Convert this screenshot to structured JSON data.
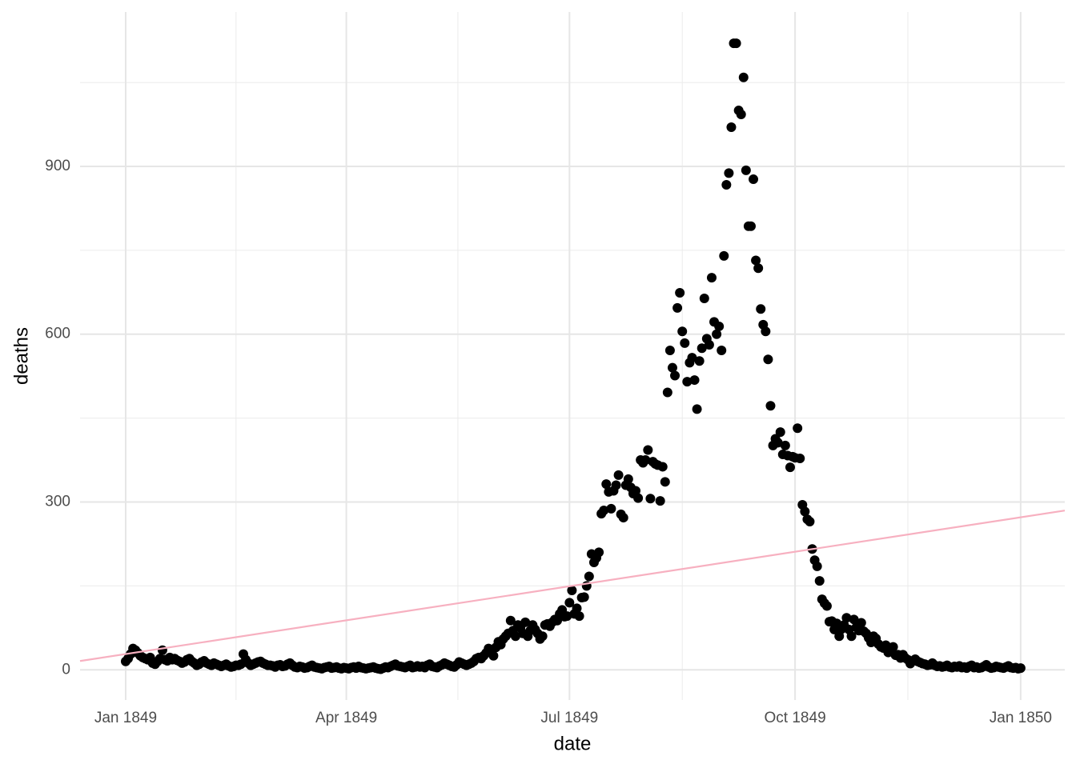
{
  "chart_data": {
    "type": "scatter",
    "x_label": "date",
    "y_label": "deaths",
    "xlim": [
      -18.6,
      383.0
    ],
    "ylim": [
      -54,
      1176
    ],
    "xticks": [
      {
        "value": 0,
        "label": "Jan 1849"
      },
      {
        "value": 90,
        "label": "Apr 1849"
      },
      {
        "value": 181,
        "label": "Jul 1849"
      },
      {
        "value": 273,
        "label": "Oct 1849"
      },
      {
        "value": 365,
        "label": "Jan 1850"
      }
    ],
    "yticks": [
      0,
      300,
      600,
      900
    ],
    "x_minor_grid": [
      45,
      135.5,
      227,
      319
    ],
    "y_minor_grid": [
      150,
      450,
      750,
      1050
    ],
    "grid": true,
    "color": "#000000",
    "x": [
      0,
      1,
      2,
      3,
      4,
      5,
      6,
      7,
      8,
      9,
      10,
      11,
      12,
      13,
      14,
      15,
      16,
      17,
      18,
      19,
      20,
      21,
      22,
      23,
      24,
      25,
      26,
      27,
      28,
      29,
      30,
      31,
      32,
      33,
      34,
      35,
      36,
      37,
      38,
      39,
      40,
      41,
      42,
      43,
      44,
      45,
      46,
      47,
      48,
      49,
      50,
      51,
      52,
      53,
      54,
      55,
      56,
      57,
      58,
      59,
      60,
      61,
      62,
      63,
      64,
      65,
      66,
      67,
      68,
      69,
      70,
      71,
      72,
      73,
      74,
      75,
      76,
      77,
      78,
      79,
      80,
      81,
      82,
      83,
      84,
      85,
      86,
      87,
      88,
      89,
      90,
      91,
      92,
      93,
      94,
      95,
      96,
      97,
      98,
      99,
      100,
      101,
      102,
      103,
      104,
      105,
      106,
      107,
      108,
      109,
      110,
      111,
      112,
      113,
      114,
      115,
      116,
      117,
      118,
      119,
      120,
      121,
      122,
      123,
      124,
      125,
      126,
      127,
      128,
      129,
      130,
      131,
      132,
      133,
      134,
      135,
      136,
      137,
      138,
      139,
      140,
      141,
      142,
      143,
      144,
      145,
      146,
      147,
      148,
      149,
      150,
      151,
      152,
      153,
      154,
      155,
      156,
      157,
      158,
      159,
      160,
      161,
      162,
      163,
      164,
      165,
      166,
      167,
      168,
      169,
      170,
      171,
      172,
      173,
      174,
      175,
      176,
      177,
      178,
      179,
      180,
      181,
      182,
      183,
      184,
      185,
      186,
      187,
      188,
      189,
      190,
      191,
      192,
      193,
      194,
      195,
      196,
      197,
      198,
      199,
      200,
      201,
      202,
      203,
      204,
      205,
      206,
      207,
      208,
      209,
      210,
      211,
      212,
      213,
      214,
      215,
      216,
      217,
      218,
      219,
      220,
      221,
      222,
      223,
      224,
      225,
      226,
      227,
      228,
      229,
      230,
      231,
      232,
      233,
      234,
      235,
      236,
      237,
      238,
      239,
      240,
      241,
      242,
      243,
      244,
      245,
      246,
      247,
      248,
      249,
      250,
      251,
      252,
      253,
      254,
      255,
      256,
      257,
      258,
      259,
      260,
      261,
      262,
      263,
      264,
      265,
      266,
      267,
      268,
      269,
      270,
      271,
      272,
      273,
      274,
      275,
      276,
      277,
      278,
      279,
      280,
      281,
      282,
      283,
      284,
      285,
      286,
      287,
      288,
      289,
      290,
      291,
      292,
      293,
      294,
      295,
      296,
      297,
      298,
      299,
      300,
      301,
      302,
      303,
      304,
      305,
      306,
      307,
      308,
      309,
      310,
      311,
      312,
      313,
      314,
      315,
      316,
      317,
      318,
      319,
      320,
      321,
      322,
      323,
      324,
      325,
      326,
      327,
      328,
      329,
      330,
      331,
      332,
      333,
      334,
      335,
      336,
      337,
      338,
      339,
      340,
      341,
      342,
      343,
      344,
      345,
      346,
      347,
      348,
      349,
      350,
      351,
      352,
      353,
      354,
      355,
      356,
      357,
      358,
      359,
      360,
      361,
      362,
      363,
      364,
      365
    ],
    "values": [
      15,
      20,
      28,
      38,
      35,
      30,
      25,
      22,
      20,
      18,
      22,
      12,
      10,
      15,
      20,
      35,
      18,
      16,
      22,
      18,
      20,
      17,
      15,
      12,
      14,
      18,
      20,
      15,
      12,
      8,
      10,
      14,
      16,
      12,
      10,
      8,
      12,
      10,
      8,
      6,
      8,
      10,
      7,
      5,
      6,
      8,
      8,
      10,
      28,
      18,
      12,
      8,
      10,
      12,
      14,
      15,
      12,
      10,
      8,
      8,
      7,
      5,
      8,
      9,
      6,
      7,
      10,
      12,
      8,
      5,
      4,
      6,
      5,
      3,
      4,
      6,
      8,
      5,
      4,
      3,
      2,
      4,
      5,
      6,
      3,
      4,
      5,
      3,
      2,
      4,
      3,
      2,
      4,
      5,
      3,
      6,
      4,
      3,
      2,
      3,
      4,
      5,
      3,
      2,
      1,
      3,
      5,
      4,
      6,
      8,
      10,
      7,
      6,
      5,
      4,
      6,
      8,
      4,
      5,
      7,
      5,
      6,
      4,
      8,
      10,
      6,
      5,
      4,
      7,
      9,
      12,
      10,
      8,
      6,
      5,
      9,
      14,
      12,
      10,
      8,
      10,
      12,
      15,
      20,
      22,
      20,
      25,
      30,
      38,
      35,
      25,
      40,
      50,
      45,
      55,
      60,
      65,
      88,
      70,
      60,
      80,
      75,
      65,
      85,
      60,
      70,
      80,
      72,
      65,
      55,
      60,
      80,
      82,
      78,
      85,
      90,
      88,
      100,
      107,
      95,
      96,
      120,
      142,
      100,
      110,
      96,
      129,
      130,
      150,
      167,
      207,
      192,
      200,
      210,
      279,
      285,
      332,
      318,
      288,
      320,
      330,
      348,
      278,
      272,
      330,
      341,
      326,
      315,
      320,
      307,
      375,
      370,
      375,
      393,
      306,
      372,
      368,
      366,
      302,
      363,
      336,
      496,
      571,
      540,
      526,
      647,
      674,
      605,
      584,
      515,
      549,
      558,
      518,
      466,
      552,
      575,
      664,
      592,
      581,
      701,
      622,
      600,
      614,
      571,
      740,
      867,
      888,
      970,
      1120,
      1120,
      1000,
      993,
      1059,
      893,
      793,
      793,
      877,
      732,
      718,
      645,
      617,
      605,
      555,
      472,
      401,
      413,
      406,
      425,
      385,
      401,
      383,
      362,
      381,
      379,
      432,
      378,
      295,
      283,
      269,
      265,
      216,
      196,
      185,
      159,
      126,
      119,
      114,
      86,
      87,
      72,
      83,
      60,
      73,
      80,
      93,
      72,
      60,
      90,
      76,
      70,
      84,
      69,
      65,
      57,
      49,
      60,
      56,
      46,
      41,
      39,
      44,
      31,
      36,
      41,
      26,
      27,
      21,
      27,
      21,
      18,
      11,
      16,
      19,
      15,
      13,
      11,
      10,
      8,
      9,
      12,
      8,
      6,
      7,
      5,
      6,
      8,
      5,
      4,
      6,
      5,
      7,
      4,
      5,
      3,
      6,
      8,
      4,
      5,
      3,
      4,
      6,
      9,
      5,
      3,
      4,
      6,
      5,
      4,
      3,
      5,
      7,
      4,
      3,
      4,
      2,
      3
    ],
    "trend": {
      "color": "#f7b0c0",
      "x": [
        -18.6,
        383.0
      ],
      "values": [
        15.7,
        284.7
      ]
    }
  }
}
